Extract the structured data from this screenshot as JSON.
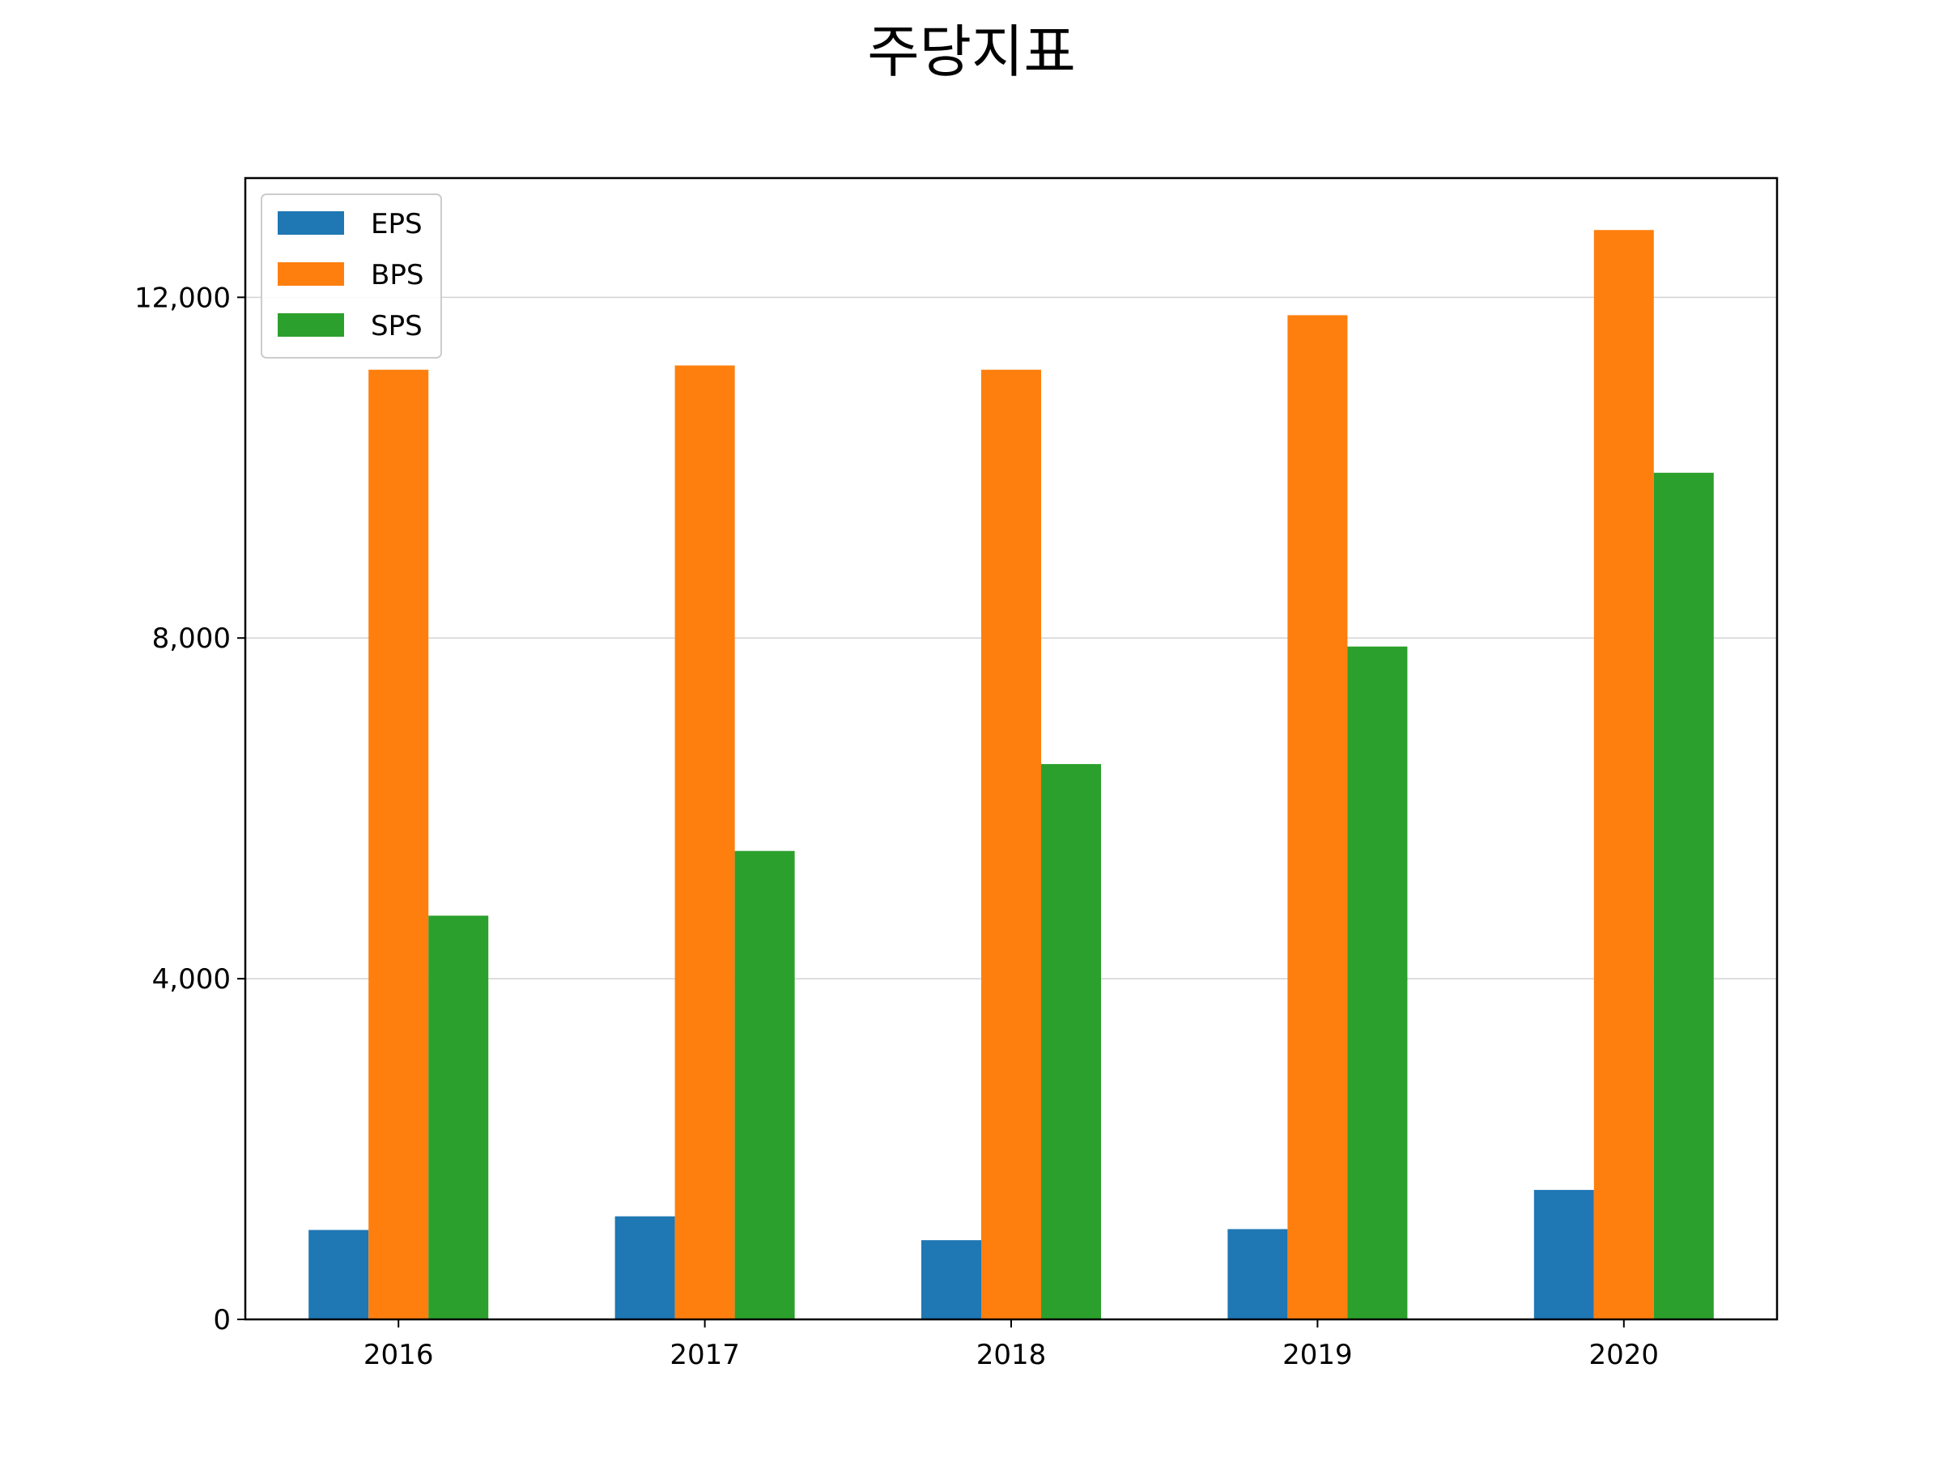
{
  "chart_data": {
    "type": "bar",
    "title": "주당지표",
    "xlabel": "",
    "ylabel": "",
    "categories": [
      "2016",
      "2017",
      "2018",
      "2019",
      "2020"
    ],
    "series": [
      {
        "name": "EPS",
        "color": "#1f77b4",
        "values": [
          1050,
          1210,
          930,
          1060,
          1520
        ]
      },
      {
        "name": "BPS",
        "color": "#ff7f0e",
        "values": [
          11150,
          11200,
          11150,
          11790,
          12790
        ]
      },
      {
        "name": "SPS",
        "color": "#2ca02c",
        "values": [
          4740,
          5500,
          6520,
          7900,
          9940
        ]
      }
    ],
    "ylim": [
      0,
      13400
    ],
    "yticks": [
      0,
      4000,
      8000,
      12000
    ],
    "ytick_labels": [
      "0",
      "4,000",
      "8,000",
      "12,000"
    ],
    "grid": "horizontal",
    "legend_position": "top-left"
  }
}
